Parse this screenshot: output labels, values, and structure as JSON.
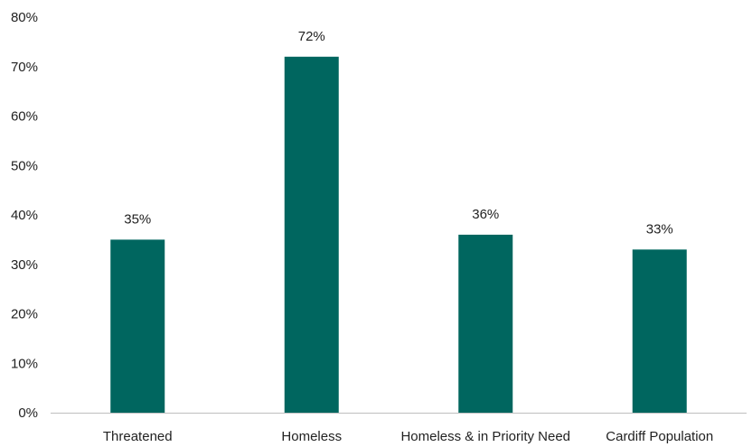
{
  "chart_data": {
    "type": "bar",
    "categories": [
      "Threatened",
      "Homeless",
      "Homeless & in Priority Need",
      "Cardiff Population"
    ],
    "values": [
      35,
      72,
      36,
      33
    ],
    "data_labels": [
      "35%",
      "72%",
      "36%",
      "33%"
    ],
    "title": "",
    "xlabel": "",
    "ylabel": "",
    "ylim": [
      0,
      80
    ],
    "y_ticks": [
      0,
      10,
      20,
      30,
      40,
      50,
      60,
      70,
      80
    ],
    "y_tick_labels": [
      "0%",
      "10%",
      "20%",
      "30%",
      "40%",
      "50%",
      "60%",
      "70%",
      "80%"
    ],
    "grid": false,
    "legend": "none",
    "bar_color": "#00665f",
    "axis_color": "#bfbfbf"
  }
}
